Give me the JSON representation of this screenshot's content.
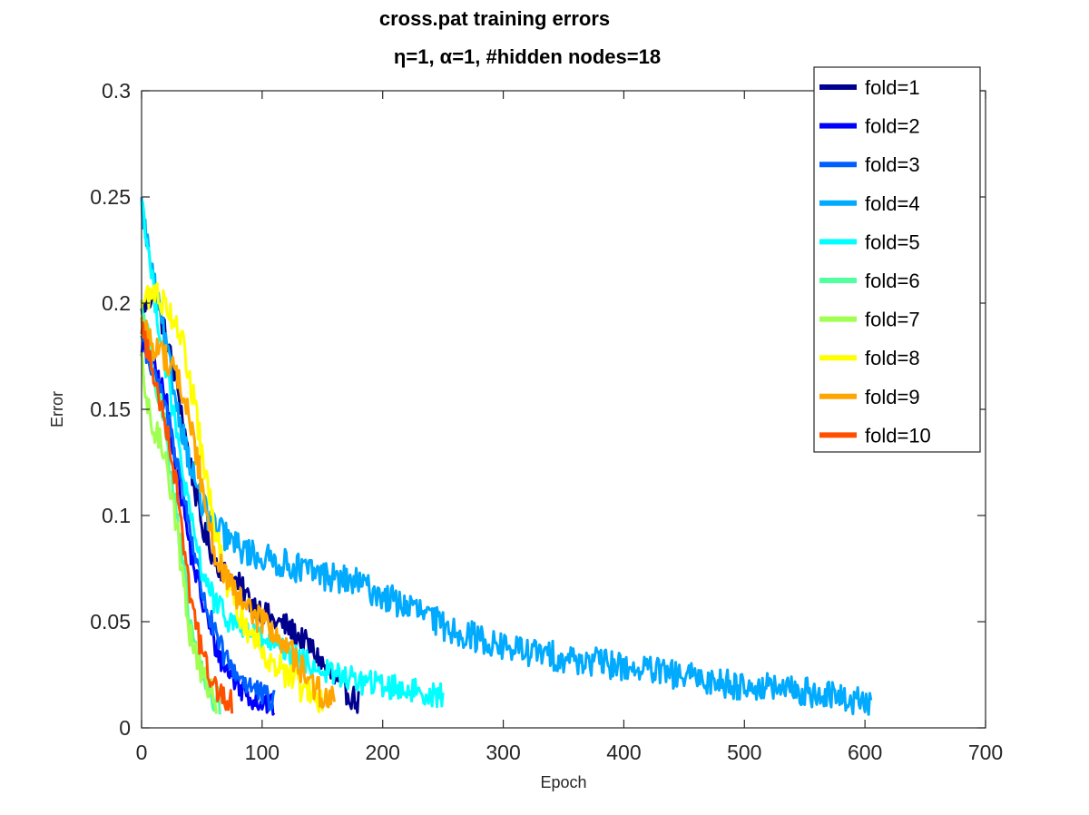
{
  "chart_data": {
    "type": "line",
    "title": "cross.pat training errors",
    "subtitle": "η=1,   α=1, #hidden nodes=18",
    "xlabel": "Epoch",
    "ylabel": "Error",
    "xlim": [
      0,
      700
    ],
    "ylim": [
      0,
      0.3
    ],
    "xticks": [
      0,
      100,
      200,
      300,
      400,
      500,
      600,
      700
    ],
    "yticks": [
      0,
      0.05,
      0.1,
      0.15,
      0.2,
      0.25,
      0.3
    ],
    "xtick_labels": [
      "0",
      "100",
      "200",
      "300",
      "400",
      "500",
      "600",
      "700"
    ],
    "ytick_labels": [
      "0",
      "0.05",
      "0.1",
      "0.15",
      "0.2",
      "0.25",
      "0.3"
    ],
    "legend_position": "top-right",
    "grid": false,
    "series": [
      {
        "name": "fold=1",
        "color": "#00008F",
        "end": 180,
        "noise": 0.006,
        "points": [
          [
            0,
            0.195
          ],
          [
            10,
            0.205
          ],
          [
            20,
            0.185
          ],
          [
            30,
            0.16
          ],
          [
            40,
            0.125
          ],
          [
            50,
            0.095
          ],
          [
            60,
            0.08
          ],
          [
            70,
            0.072
          ],
          [
            80,
            0.068
          ],
          [
            90,
            0.06
          ],
          [
            100,
            0.055
          ],
          [
            110,
            0.05
          ],
          [
            120,
            0.048
          ],
          [
            130,
            0.043
          ],
          [
            140,
            0.038
          ],
          [
            150,
            0.03
          ],
          [
            160,
            0.022
          ],
          [
            170,
            0.017
          ],
          [
            180,
            0.012
          ]
        ]
      },
      {
        "name": "fold=2",
        "color": "#0000FF",
        "end": 110,
        "noise": 0.006,
        "points": [
          [
            0,
            0.18
          ],
          [
            10,
            0.17
          ],
          [
            20,
            0.155
          ],
          [
            30,
            0.12
          ],
          [
            40,
            0.085
          ],
          [
            50,
            0.06
          ],
          [
            60,
            0.04
          ],
          [
            70,
            0.028
          ],
          [
            80,
            0.02
          ],
          [
            90,
            0.015
          ],
          [
            100,
            0.012
          ],
          [
            110,
            0.01
          ]
        ]
      },
      {
        "name": "fold=3",
        "color": "#0060FF",
        "end": 110,
        "noise": 0.006,
        "points": [
          [
            0,
            0.185
          ],
          [
            10,
            0.165
          ],
          [
            20,
            0.15
          ],
          [
            30,
            0.125
          ],
          [
            40,
            0.095
          ],
          [
            50,
            0.065
          ],
          [
            60,
            0.045
          ],
          [
            70,
            0.032
          ],
          [
            80,
            0.025
          ],
          [
            90,
            0.02
          ],
          [
            100,
            0.015
          ],
          [
            110,
            0.012
          ]
        ]
      },
      {
        "name": "fold=4",
        "color": "#00AAFF",
        "end": 605,
        "noise": 0.007,
        "points": [
          [
            0,
            0.245
          ],
          [
            10,
            0.21
          ],
          [
            20,
            0.18
          ],
          [
            30,
            0.15
          ],
          [
            40,
            0.125
          ],
          [
            50,
            0.105
          ],
          [
            60,
            0.095
          ],
          [
            80,
            0.085
          ],
          [
            100,
            0.08
          ],
          [
            120,
            0.077
          ],
          [
            150,
            0.072
          ],
          [
            180,
            0.068
          ],
          [
            200,
            0.062
          ],
          [
            230,
            0.055
          ],
          [
            250,
            0.048
          ],
          [
            280,
            0.042
          ],
          [
            300,
            0.038
          ],
          [
            350,
            0.033
          ],
          [
            400,
            0.029
          ],
          [
            450,
            0.024
          ],
          [
            500,
            0.02
          ],
          [
            550,
            0.017
          ],
          [
            600,
            0.012
          ],
          [
            605,
            0.011
          ]
        ]
      },
      {
        "name": "fold=5",
        "color": "#00FFFF",
        "end": 250,
        "noise": 0.006,
        "points": [
          [
            0,
            0.25
          ],
          [
            10,
            0.205
          ],
          [
            20,
            0.17
          ],
          [
            30,
            0.135
          ],
          [
            40,
            0.1
          ],
          [
            50,
            0.075
          ],
          [
            60,
            0.06
          ],
          [
            70,
            0.052
          ],
          [
            80,
            0.048
          ],
          [
            100,
            0.042
          ],
          [
            120,
            0.035
          ],
          [
            150,
            0.027
          ],
          [
            180,
            0.022
          ],
          [
            200,
            0.02
          ],
          [
            220,
            0.018
          ],
          [
            240,
            0.016
          ],
          [
            250,
            0.015
          ]
        ]
      },
      {
        "name": "fold=6",
        "color": "#50FFA0",
        "end": 65,
        "noise": 0.007,
        "points": [
          [
            0,
            0.2
          ],
          [
            10,
            0.17
          ],
          [
            20,
            0.14
          ],
          [
            30,
            0.095
          ],
          [
            40,
            0.05
          ],
          [
            50,
            0.025
          ],
          [
            60,
            0.013
          ],
          [
            65,
            0.012
          ]
        ]
      },
      {
        "name": "fold=7",
        "color": "#A0FF50",
        "end": 62,
        "noise": 0.007,
        "points": [
          [
            0,
            0.17
          ],
          [
            5,
            0.15
          ],
          [
            10,
            0.14
          ],
          [
            20,
            0.13
          ],
          [
            30,
            0.09
          ],
          [
            40,
            0.045
          ],
          [
            50,
            0.025
          ],
          [
            60,
            0.015
          ],
          [
            62,
            0.013
          ]
        ]
      },
      {
        "name": "fold=8",
        "color": "#FFFF00",
        "end": 150,
        "noise": 0.007,
        "points": [
          [
            0,
            0.2
          ],
          [
            10,
            0.205
          ],
          [
            20,
            0.2
          ],
          [
            30,
            0.19
          ],
          [
            40,
            0.165
          ],
          [
            50,
            0.13
          ],
          [
            60,
            0.095
          ],
          [
            70,
            0.07
          ],
          [
            80,
            0.055
          ],
          [
            90,
            0.045
          ],
          [
            100,
            0.038
          ],
          [
            110,
            0.03
          ],
          [
            120,
            0.025
          ],
          [
            130,
            0.02
          ],
          [
            140,
            0.015
          ],
          [
            150,
            0.012
          ]
        ]
      },
      {
        "name": "fold=9",
        "color": "#FFA500",
        "end": 160,
        "noise": 0.007,
        "points": [
          [
            0,
            0.19
          ],
          [
            10,
            0.18
          ],
          [
            20,
            0.175
          ],
          [
            30,
            0.165
          ],
          [
            40,
            0.145
          ],
          [
            50,
            0.115
          ],
          [
            60,
            0.085
          ],
          [
            70,
            0.07
          ],
          [
            80,
            0.06
          ],
          [
            90,
            0.055
          ],
          [
            100,
            0.05
          ],
          [
            110,
            0.045
          ],
          [
            120,
            0.038
          ],
          [
            130,
            0.03
          ],
          [
            140,
            0.022
          ],
          [
            150,
            0.015
          ],
          [
            160,
            0.012
          ]
        ]
      },
      {
        "name": "fold=10",
        "color": "#FF5000",
        "end": 75,
        "noise": 0.006,
        "points": [
          [
            0,
            0.19
          ],
          [
            10,
            0.165
          ],
          [
            20,
            0.145
          ],
          [
            30,
            0.11
          ],
          [
            40,
            0.065
          ],
          [
            50,
            0.035
          ],
          [
            60,
            0.02
          ],
          [
            70,
            0.013
          ],
          [
            75,
            0.012
          ]
        ]
      }
    ]
  }
}
